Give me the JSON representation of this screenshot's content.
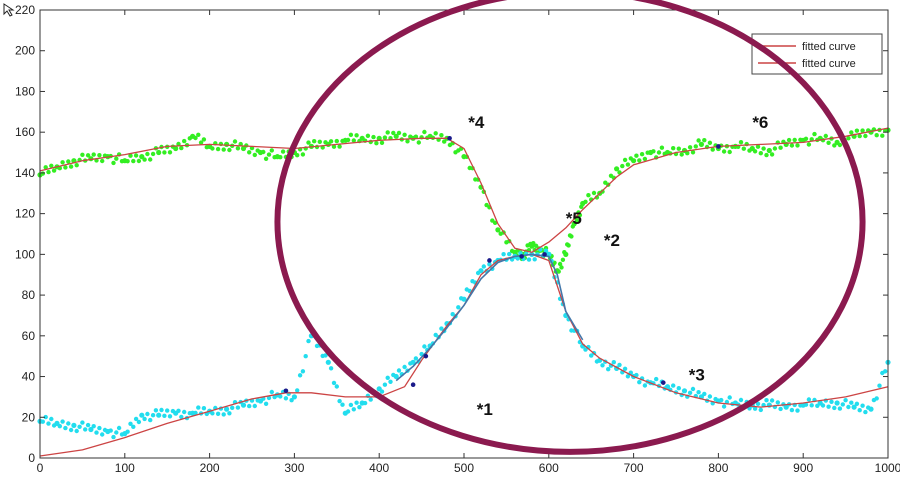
{
  "chart_data": {
    "type": "scatter",
    "title": "",
    "xlabel": "",
    "ylabel": "",
    "xlim": [
      0,
      1000
    ],
    "ylim": [
      0,
      220
    ],
    "x_ticks": [
      "0",
      "100",
      "200",
      "300",
      "400",
      "500",
      "600",
      "700",
      "800",
      "900",
      "1000"
    ],
    "y_ticks": [
      "0",
      "20",
      "40",
      "60",
      "80",
      "100",
      "120",
      "140",
      "160",
      "180",
      "200",
      "220"
    ],
    "grid": false,
    "legend": {
      "placement": "top-right",
      "entries": [
        "fitted curve",
        "fitted curve"
      ]
    },
    "series": [
      {
        "type": "scatter",
        "color": "#33ee22",
        "points": [
          [
            0,
            139
          ],
          [
            20,
            143
          ],
          [
            40,
            146
          ],
          [
            60,
            147
          ],
          [
            80,
            148
          ],
          [
            100,
            146
          ],
          [
            120,
            148
          ],
          [
            140,
            150
          ],
          [
            160,
            152
          ],
          [
            180,
            158
          ],
          [
            200,
            153
          ],
          [
            220,
            154
          ],
          [
            240,
            152
          ],
          [
            260,
            150
          ],
          [
            280,
            148
          ],
          [
            300,
            150
          ],
          [
            320,
            153
          ],
          [
            340,
            154
          ],
          [
            360,
            156
          ],
          [
            380,
            157
          ],
          [
            400,
            157
          ],
          [
            420,
            158
          ],
          [
            440,
            157
          ],
          [
            460,
            158
          ],
          [
            480,
            157
          ],
          [
            500,
            148
          ],
          [
            520,
            133
          ],
          [
            540,
            112
          ],
          [
            560,
            101
          ],
          [
            570,
            100
          ],
          [
            580,
            104
          ],
          [
            590,
            102
          ],
          [
            600,
            100
          ],
          [
            610,
            92
          ],
          [
            620,
            100
          ],
          [
            630,
            115
          ],
          [
            640,
            125
          ],
          [
            660,
            130
          ],
          [
            680,
            142
          ],
          [
            700,
            146
          ],
          [
            720,
            150
          ],
          [
            740,
            150
          ],
          [
            760,
            151
          ],
          [
            780,
            154
          ],
          [
            800,
            152
          ],
          [
            820,
            153
          ],
          [
            840,
            152
          ],
          [
            860,
            151
          ],
          [
            880,
            154
          ],
          [
            900,
            156
          ],
          [
            920,
            157
          ],
          [
            940,
            155
          ],
          [
            960,
            158
          ],
          [
            980,
            160
          ],
          [
            1000,
            161
          ]
        ]
      },
      {
        "type": "scatter",
        "color": "#22ddee",
        "points": [
          [
            0,
            18
          ],
          [
            20,
            17
          ],
          [
            40,
            16
          ],
          [
            60,
            14
          ],
          [
            80,
            13
          ],
          [
            100,
            12
          ],
          [
            120,
            21
          ],
          [
            140,
            21
          ],
          [
            160,
            22
          ],
          [
            180,
            22
          ],
          [
            200,
            23
          ],
          [
            220,
            24
          ],
          [
            240,
            26
          ],
          [
            260,
            28
          ],
          [
            280,
            31
          ],
          [
            300,
            30
          ],
          [
            320,
            60
          ],
          [
            340,
            47
          ],
          [
            360,
            22
          ],
          [
            380,
            27
          ],
          [
            400,
            34
          ],
          [
            420,
            40
          ],
          [
            440,
            47
          ],
          [
            460,
            55
          ],
          [
            480,
            66
          ],
          [
            500,
            78
          ],
          [
            520,
            92
          ],
          [
            540,
            97
          ],
          [
            560,
            99
          ],
          [
            580,
            100
          ],
          [
            600,
            100
          ],
          [
            620,
            70
          ],
          [
            640,
            55
          ],
          [
            660,
            48
          ],
          [
            680,
            44
          ],
          [
            700,
            40
          ],
          [
            720,
            37
          ],
          [
            740,
            35
          ],
          [
            760,
            33
          ],
          [
            780,
            30
          ],
          [
            800,
            28
          ],
          [
            820,
            27
          ],
          [
            840,
            26
          ],
          [
            860,
            26
          ],
          [
            880,
            25
          ],
          [
            900,
            26
          ],
          [
            920,
            27
          ],
          [
            940,
            27
          ],
          [
            960,
            25
          ],
          [
            980,
            24
          ],
          [
            1000,
            47
          ]
        ]
      },
      {
        "type": "line",
        "name": "fitted curve",
        "color": "#cc4444",
        "points": [
          [
            0,
            141
          ],
          [
            50,
            146
          ],
          [
            100,
            149
          ],
          [
            150,
            153
          ],
          [
            200,
            154
          ],
          [
            250,
            153
          ],
          [
            300,
            152
          ],
          [
            350,
            154
          ],
          [
            400,
            156
          ],
          [
            450,
            157
          ],
          [
            480,
            157
          ],
          [
            500,
            152
          ],
          [
            520,
            135
          ],
          [
            540,
            115
          ],
          [
            560,
            103
          ],
          [
            580,
            101
          ],
          [
            600,
            106
          ],
          [
            620,
            113
          ],
          [
            640,
            122
          ],
          [
            660,
            130
          ],
          [
            680,
            138
          ],
          [
            700,
            144
          ],
          [
            750,
            150
          ],
          [
            800,
            153
          ],
          [
            850,
            154
          ],
          [
            900,
            155
          ],
          [
            950,
            158
          ],
          [
            1000,
            162
          ]
        ]
      },
      {
        "type": "line",
        "name": "fitted curve",
        "color": "#cc4444",
        "points": [
          [
            0,
            1
          ],
          [
            50,
            4
          ],
          [
            100,
            10
          ],
          [
            150,
            17
          ],
          [
            200,
            23
          ],
          [
            250,
            29
          ],
          [
            290,
            32
          ],
          [
            320,
            32
          ],
          [
            360,
            30
          ],
          [
            400,
            30
          ],
          [
            430,
            35
          ],
          [
            450,
            48
          ],
          [
            480,
            65
          ],
          [
            500,
            75
          ],
          [
            520,
            90
          ],
          [
            540,
            97
          ],
          [
            560,
            99
          ],
          [
            580,
            100
          ],
          [
            600,
            97
          ],
          [
            620,
            72
          ],
          [
            640,
            56
          ],
          [
            660,
            49
          ],
          [
            700,
            40
          ],
          [
            750,
            32
          ],
          [
            800,
            27
          ],
          [
            850,
            25
          ],
          [
            900,
            27
          ],
          [
            950,
            30
          ],
          [
            1000,
            35
          ]
        ]
      },
      {
        "type": "line",
        "name": "",
        "color": "#4477aa",
        "points": [
          [
            420,
            38
          ],
          [
            440,
            45
          ],
          [
            460,
            54
          ],
          [
            480,
            64
          ],
          [
            500,
            75
          ],
          [
            520,
            88
          ],
          [
            540,
            96
          ],
          [
            560,
            99
          ],
          [
            580,
            100
          ],
          [
            600,
            99
          ],
          [
            610,
            90
          ],
          [
            620,
            72
          ],
          [
            640,
            58
          ]
        ]
      }
    ],
    "markers": [
      {
        "x": 290,
        "y": 33
      },
      {
        "x": 440,
        "y": 36
      },
      {
        "x": 455,
        "y": 50
      },
      {
        "x": 530,
        "y": 97
      },
      {
        "x": 568,
        "y": 99
      },
      {
        "x": 595,
        "y": 100
      },
      {
        "x": 735,
        "y": 37
      },
      {
        "x": 800,
        "y": 153
      },
      {
        "x": 483,
        "y": 157
      }
    ],
    "annotations": [
      {
        "text": "*1",
        "x": 515,
        "y": 21
      },
      {
        "text": "*2",
        "x": 665,
        "y": 104
      },
      {
        "text": "*3",
        "x": 765,
        "y": 38
      },
      {
        "text": "*4",
        "x": 505,
        "y": 162
      },
      {
        "text": "*5",
        "x": 620,
        "y": 115
      },
      {
        "text": "*6",
        "x": 840,
        "y": 162
      }
    ],
    "highlight": {
      "shape": "ellipse",
      "color": "#8b1a4f",
      "center": [
        625,
        116
      ],
      "radii": [
        345,
        113
      ]
    }
  }
}
